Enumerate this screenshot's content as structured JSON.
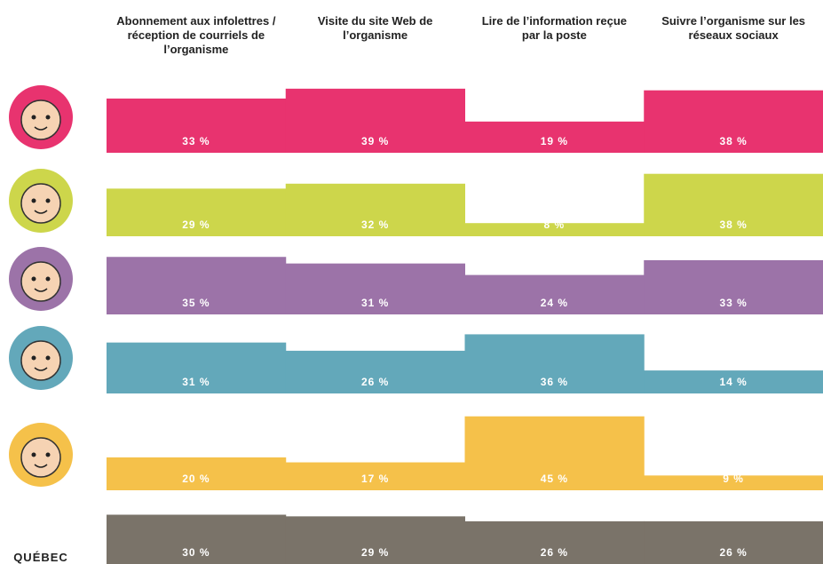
{
  "chart_data": {
    "type": "bar",
    "categories": [
      "Abonnement aux infolettres / réception de courriels de l’organisme",
      "Visite du site Web de l’organisme",
      "Lire de l’information reçue par la poste",
      "Suivre l’organisme sur les réseaux sociaux"
    ],
    "series": [
      {
        "color": "#e8336f",
        "values": [
          33,
          39,
          19,
          38
        ],
        "value_labels": [
          "33 %",
          "39 %",
          "19 %",
          "38 %"
        ]
      },
      {
        "color": "#cdd64b",
        "values": [
          29,
          32,
          8,
          38
        ],
        "value_labels": [
          "29 %",
          "32 %",
          "8 %",
          "38 %"
        ]
      },
      {
        "color": "#9c73a8",
        "values": [
          35,
          31,
          24,
          33
        ],
        "value_labels": [
          "35 %",
          "31 %",
          "24 %",
          "33 %"
        ]
      },
      {
        "color": "#63a8ba",
        "values": [
          31,
          26,
          36,
          14
        ],
        "value_labels": [
          "31 %",
          "26 %",
          "36 %",
          "14 %"
        ]
      },
      {
        "color": "#f5c14a",
        "values": [
          20,
          17,
          45,
          9
        ],
        "value_labels": [
          "20 %",
          "17 %",
          "45 %",
          "9 %"
        ]
      },
      {
        "name": "QUÉBEC",
        "color": "#7a7369",
        "values": [
          30,
          29,
          26,
          26
        ],
        "value_labels": [
          "30 %",
          "29 %",
          "26 %",
          "26 %"
        ]
      }
    ]
  }
}
